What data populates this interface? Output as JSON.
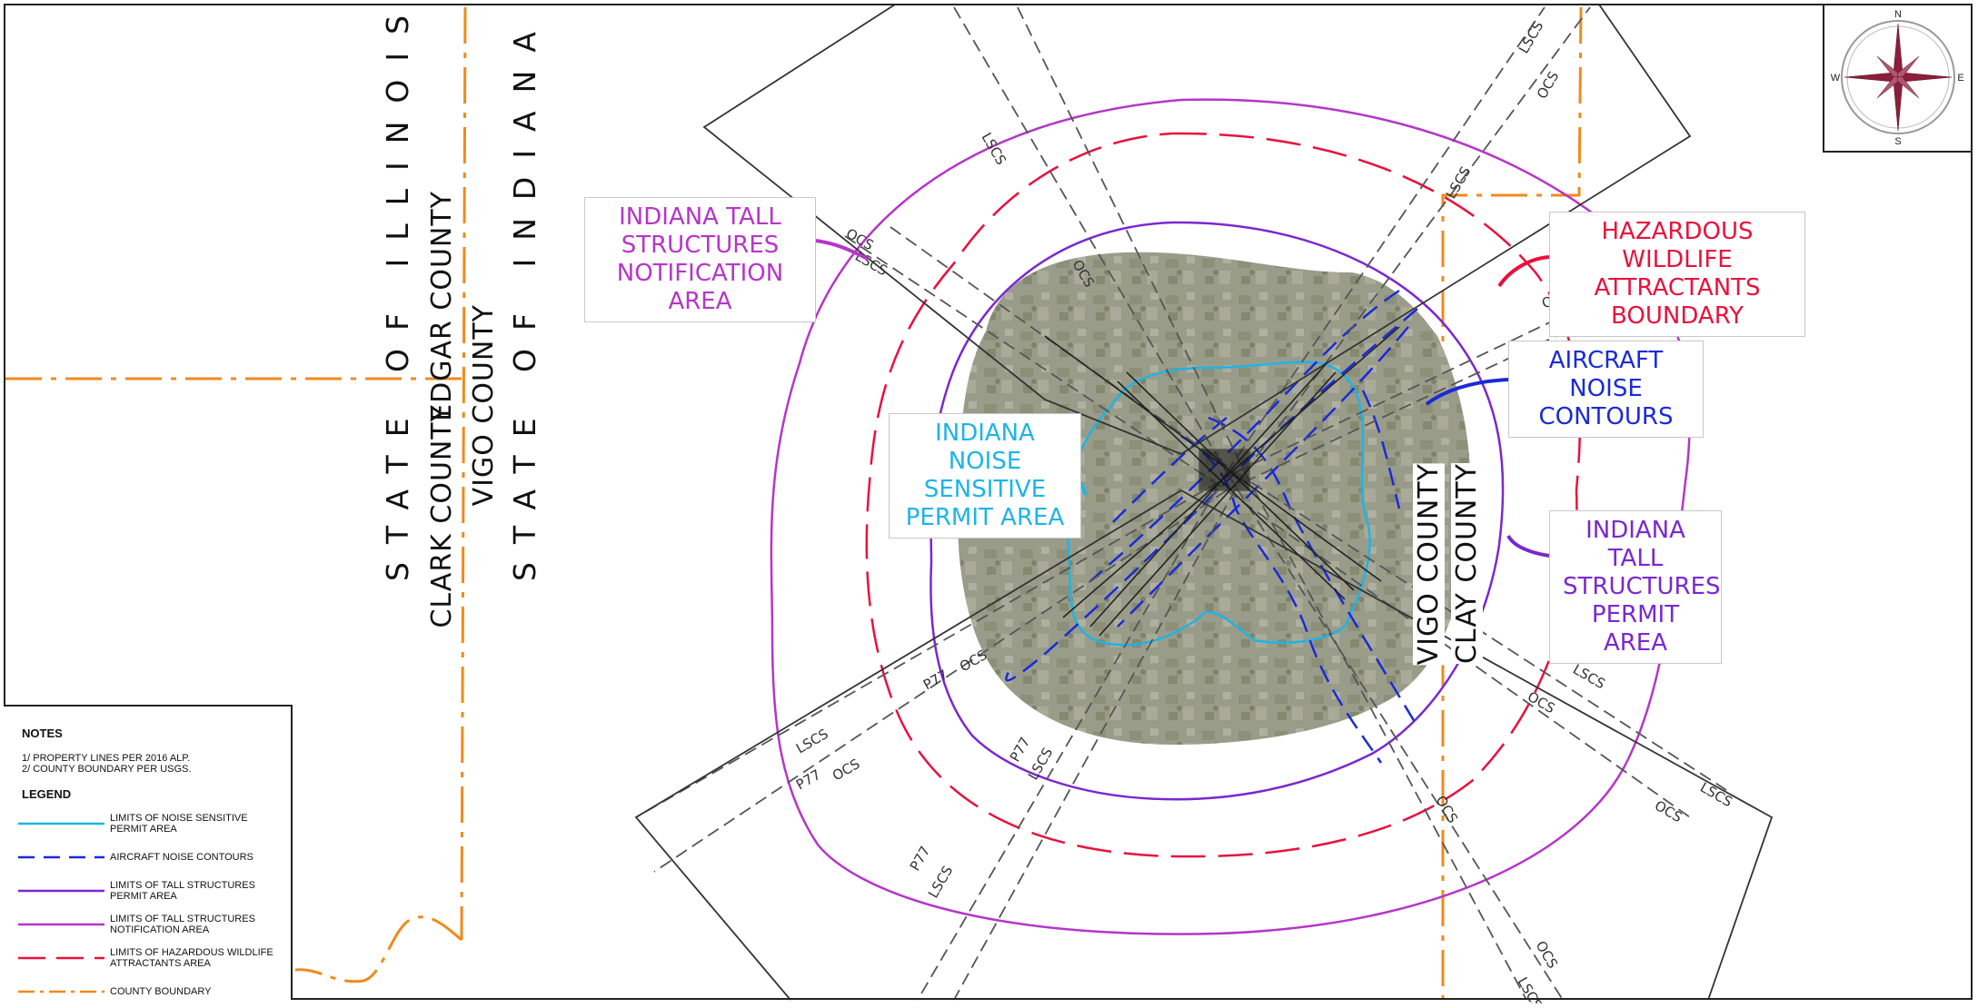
{
  "state_labels": {
    "illinois": "STATE OF ILLINOIS",
    "indiana": "STATE OF INDIANA"
  },
  "county_labels": {
    "edgar": "EDGAR COUNTY",
    "clark": "CLARK COUNTY",
    "vigo_west": "VIGO COUNTY",
    "vigo_east": "VIGO COUNTY",
    "clay": "CLAY COUNTY"
  },
  "callouts": {
    "tall_structures_notification": {
      "lines": [
        "INDIANA TALL",
        "STRUCTURES",
        "NOTIFICATION AREA"
      ],
      "color": "#b536c8"
    },
    "noise_sensitive_permit": {
      "lines": [
        "INDIANA NOISE",
        "SENSITIVE",
        "PERMIT AREA"
      ],
      "color": "#1eb4e6"
    },
    "hazardous_wildlife": {
      "lines": [
        "HAZARDOUS WILDLIFE",
        "ATTRACTANTS",
        "BOUNDARY"
      ],
      "color": "#e8123c"
    },
    "aircraft_noise": {
      "lines": [
        "AIRCRAFT NOISE",
        "CONTOURS"
      ],
      "color": "#1a2ad8"
    },
    "tall_structures_permit": {
      "lines": [
        "INDIANA TALL",
        "STRUCTURES",
        "PERMIT AREA"
      ],
      "color": "#7a28d0"
    }
  },
  "surface_labels": {
    "lscs": "LSCS",
    "ocs": "OCS",
    "p77": "P77"
  },
  "compass": {
    "n": "N",
    "s": "S",
    "e": "E",
    "w": "W"
  },
  "legend": {
    "notes_title": "NOTES",
    "notes": [
      "1/ PROPERTY LINES PER 2016 ALP.",
      "2/ COUNTY BOUNDARY PER USGS."
    ],
    "legend_title": "LEGEND",
    "items": [
      {
        "label": "LIMITS OF NOISE SENSITIVE PERMIT AREA",
        "color": "#1eb4e6",
        "dash": ""
      },
      {
        "label": "AIRCRAFT NOISE CONTOURS",
        "color": "#1a2ad8",
        "dash": "18 10"
      },
      {
        "label": "LIMITS OF TALL STRUCTURES PERMIT AREA",
        "color": "#7a28d0",
        "dash": ""
      },
      {
        "label": "LIMITS OF TALL STRUCTURES NOTIFICATION AREA",
        "color": "#b536c8",
        "dash": ""
      },
      {
        "label": "LIMITS OF HAZARDOUS WILDLIFE ATTRACTANTS AREA",
        "color": "#e8123c",
        "dash": "30 12"
      },
      {
        "label": "COUNTY BOUNDARY",
        "color": "#f08a1c",
        "dash": "18 6 4 6"
      }
    ]
  }
}
